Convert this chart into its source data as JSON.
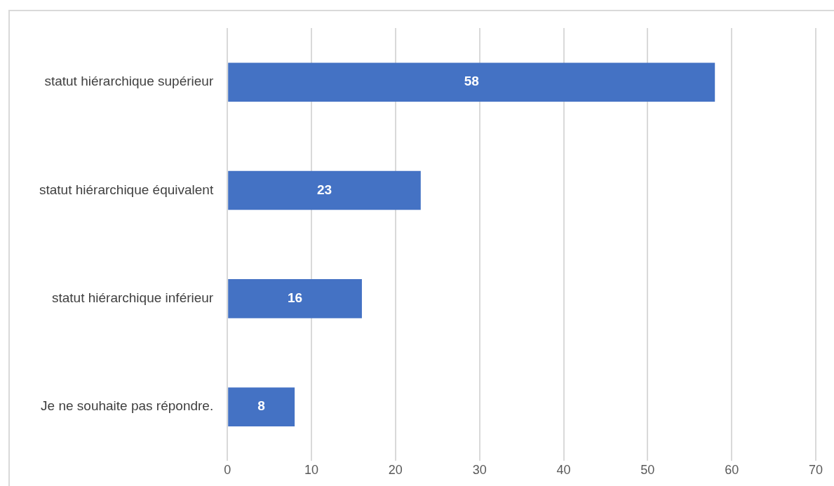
{
  "chart_data": {
    "type": "bar",
    "orientation": "horizontal",
    "categories": [
      "statut hiérarchique supérieur",
      "statut hiérarchique équivalent",
      "statut hiérarchique inférieur",
      "Je ne souhaite pas répondre."
    ],
    "values": [
      58,
      23,
      16,
      8
    ],
    "color": "#4472c4",
    "xlim": [
      0,
      70
    ],
    "xticks": [
      0,
      10,
      20,
      30,
      40,
      50,
      60,
      70
    ],
    "grid": "x",
    "data_labels": true
  }
}
